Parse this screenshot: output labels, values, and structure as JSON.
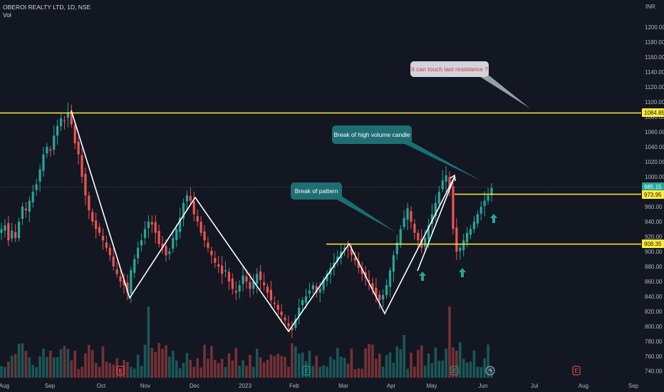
{
  "header": {
    "symbol": "OBEROI REALTY LTD, 1D, NSE",
    "indicator": "Vol",
    "currency": "INR"
  },
  "price_tags": [
    {
      "value": "1084.85",
      "bg": "#ffeb3b",
      "fg": "#131722"
    },
    {
      "value": "985.15",
      "bg": "#26a69a",
      "fg": "#ffffff"
    },
    {
      "value": "973.95",
      "bg": "#ffeb3b",
      "fg": "#131722"
    },
    {
      "value": "908.35",
      "bg": "#ffeb3b",
      "fg": "#131722"
    }
  ],
  "annotations": [
    {
      "text": "It can touch last resistance ?",
      "style": "light"
    },
    {
      "text": "Break of high volume candle",
      "style": "teal"
    },
    {
      "text": "Break of pattern",
      "style": "teal"
    }
  ],
  "event_markers": [
    "E",
    "E",
    "E",
    "E"
  ],
  "colors": {
    "background": "#131722",
    "up": "#26a69a",
    "down": "#ef5350",
    "level": "#ffeb3b",
    "pattern": "#ffffff",
    "arrow": "#26a69a"
  },
  "chart_data": {
    "type": "candlestick",
    "symbol": "OBEROI REALTY LTD",
    "interval": "1D",
    "exchange": "NSE",
    "y_ticks": [
      1200,
      1180,
      1160,
      1140,
      1120,
      1100,
      1080,
      1060,
      1040,
      1020,
      1000,
      980,
      960,
      940,
      920,
      900,
      880,
      860,
      840,
      820,
      800,
      780,
      760,
      740
    ],
    "y_tick_labels": [
      "1200.00",
      "1180.00",
      "1160.00",
      "1140.00",
      "1120.00",
      "1100.00",
      "1080.00",
      "1060.00",
      "1040.00",
      "1020.00",
      "1000.00",
      "980.00",
      "960.00",
      "940.00",
      "920.00",
      "900.00",
      "880.00",
      "860.00",
      "840.00",
      "820.00",
      "800.00",
      "780.00",
      "760.00",
      "740.00"
    ],
    "ylim": [
      730,
      1212
    ],
    "x_labels": [
      "Aug",
      "Sep",
      "Oct",
      "Nov",
      "Dec",
      "2023",
      "Feb",
      "Mar",
      "Apr",
      "May",
      "Jun",
      "Jul",
      "Aug",
      "Sep"
    ],
    "levels": [
      1084.85,
      973.95,
      908.35
    ],
    "last_price": 985.15,
    "pattern_points": [
      1088,
      837,
      975,
      792,
      908,
      812,
      1000,
      905
    ],
    "close_series": [
      930,
      935,
      915,
      928,
      918,
      940,
      960,
      955,
      968,
      980,
      990,
      1010,
      1030,
      1040,
      1035,
      1055,
      1068,
      1078,
      1075,
      1086,
      1070,
      1045,
      1030,
      1000,
      975,
      955,
      940,
      930,
      925,
      915,
      905,
      895,
      880,
      870,
      860,
      855,
      845,
      875,
      890,
      905,
      915,
      930,
      940,
      936,
      925,
      910,
      905,
      895,
      900,
      918,
      930,
      945,
      965,
      975,
      968,
      950,
      940,
      925,
      915,
      905,
      895,
      885,
      880,
      870,
      875,
      860,
      850,
      845,
      855,
      868,
      860,
      850,
      860,
      870,
      862,
      855,
      845,
      835,
      830,
      822,
      815,
      808,
      800,
      795,
      810,
      825,
      835,
      840,
      848,
      855,
      845,
      850,
      862,
      870,
      878,
      885,
      893,
      900,
      905,
      902,
      895,
      888,
      878,
      870,
      865,
      860,
      850,
      840,
      835,
      842,
      855,
      875,
      895,
      912,
      930,
      945,
      958,
      940,
      925,
      915,
      905,
      918,
      935,
      950,
      965,
      980,
      995,
      1002,
      985,
      930,
      900,
      905,
      915,
      925,
      930,
      940,
      950,
      960,
      968,
      975,
      985
    ]
  }
}
